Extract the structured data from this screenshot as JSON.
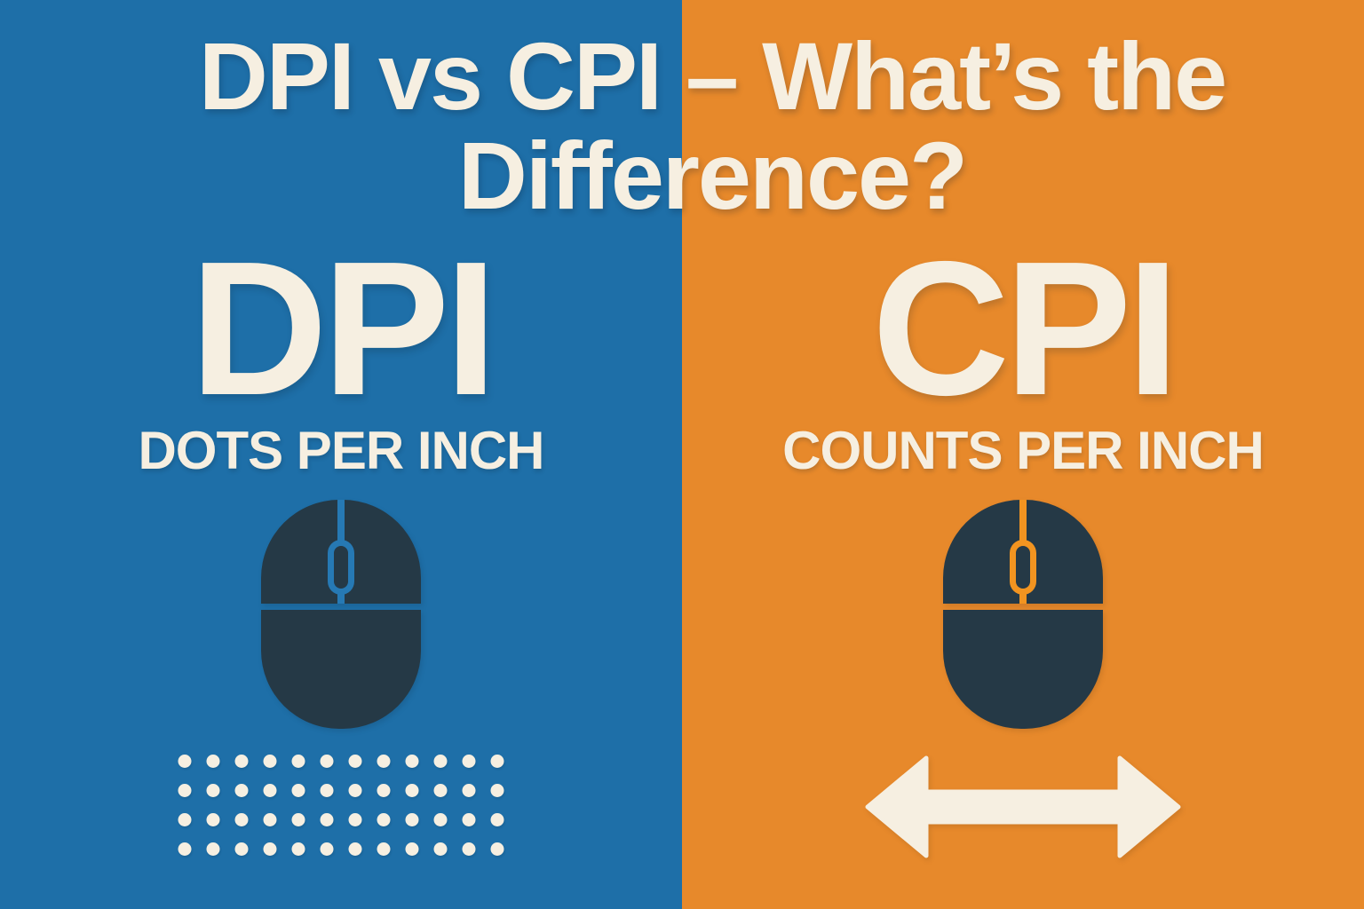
{
  "title": {
    "line1": "DPI vs CPI – What’s the",
    "line2": "Difference?"
  },
  "panels": {
    "left": {
      "acronym": "DPI",
      "caption": "DOTS PER INCH"
    },
    "right": {
      "acronym": "CPI",
      "caption": "COUNTS PER INCH"
    }
  },
  "icons": {
    "left_panel": "mouse-icon, dot-grid-icon",
    "right_panel": "mouse-icon, left-right-arrow-icon"
  },
  "dot_grid": {
    "rows": 4,
    "cols": 12
  },
  "colors": {
    "blue": "#1E6FA8",
    "orange": "#E7892B",
    "cream": "#F6EFE1",
    "navy": "#253946",
    "blue_accent": "#2679B4",
    "orange_accent": "#F29420"
  }
}
